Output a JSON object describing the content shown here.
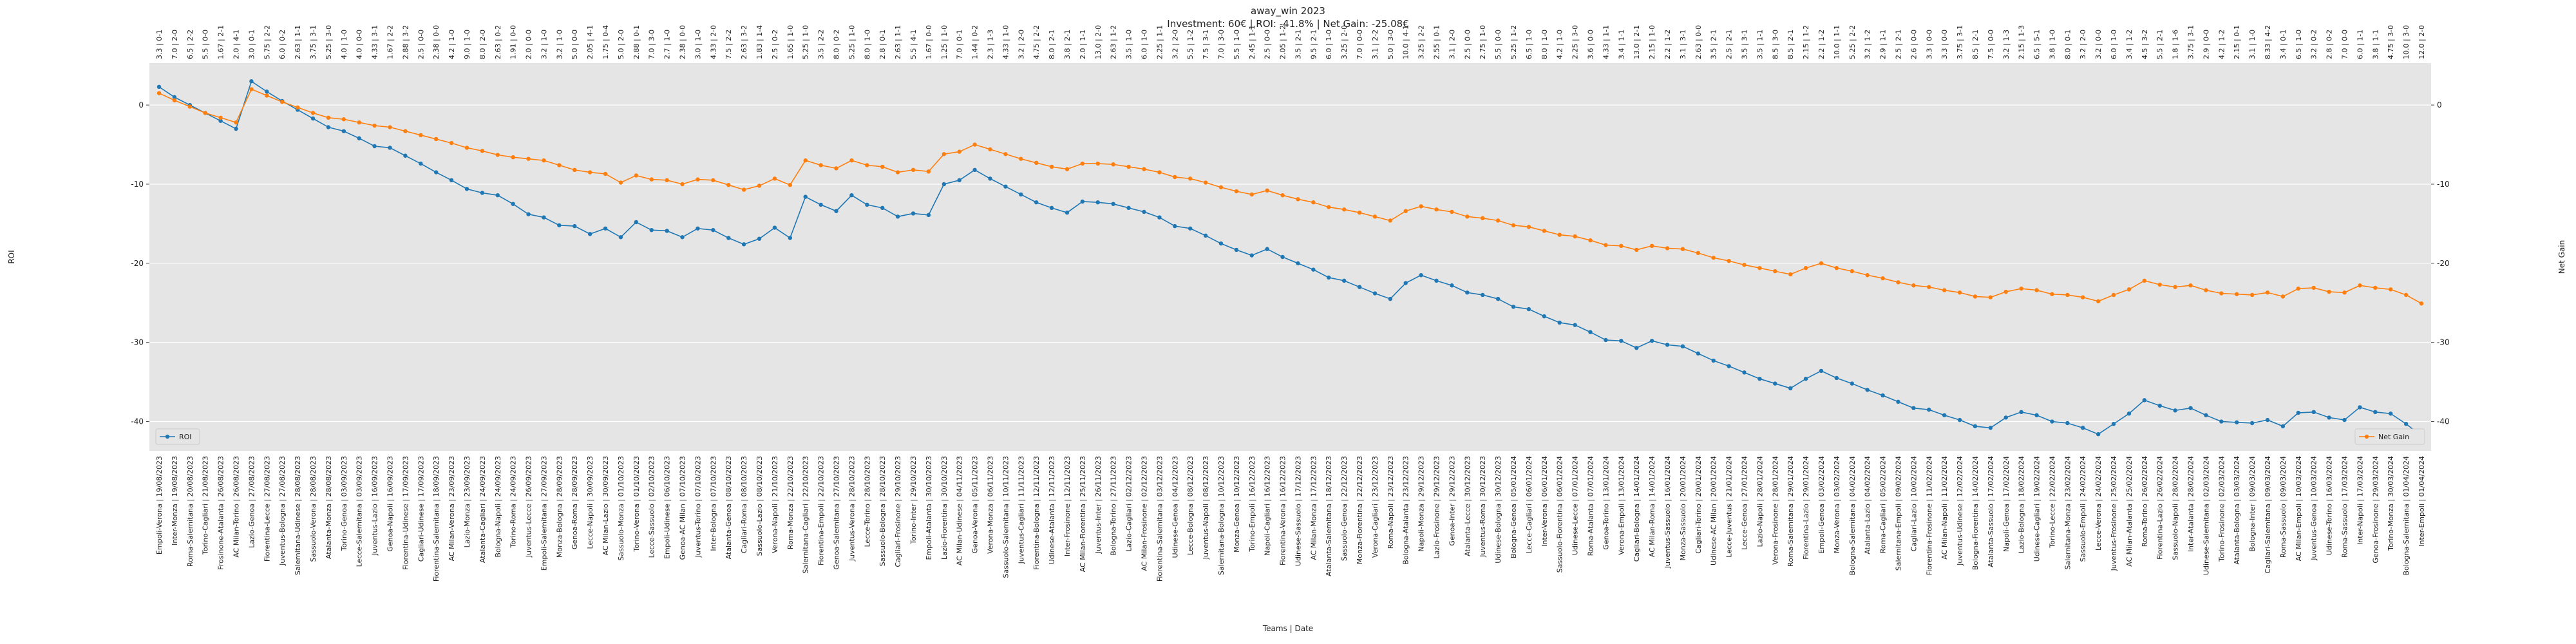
{
  "chart_data": {
    "type": "line",
    "title": "away_win 2023",
    "subtitle": "Investment: 60€ | ROI: -41.8% | Net Gain: -25.08€",
    "xlabel": "Teams | Date",
    "ylabel": "ROI",
    "y2label": "Net Gain",
    "grid": true,
    "ylim": [
      -43.7,
      5.3
    ],
    "yticks": [
      -40,
      -30,
      -20,
      -10,
      0
    ],
    "y2lim": [
      -43.7,
      5.3
    ],
    "y2ticks": [
      -40,
      -30,
      -20,
      -10,
      0
    ],
    "categories": [
      "Empoli-Verona | 19/08/2023",
      "Inter-Monza | 19/08/2023",
      "Roma-Salernitana | 20/08/2023",
      "Torino-Cagliari | 21/08/2023",
      "Frosinone-Atalanta | 26/08/2023",
      "AC Milan-Torino | 26/08/2023",
      "Lazio-Genoa | 27/08/2023",
      "Fiorentina-Lecce | 27/08/2023",
      "Juventus-Bologna | 27/08/2023",
      "Salernitana-Udinese | 28/08/2023",
      "Sassuolo-Verona | 28/08/2023",
      "Atalanta-Monza | 28/08/2023",
      "Torino-Genoa | 03/09/2023",
      "Lecce-Salernitana | 03/09/2023",
      "Juventus-Lazio | 16/09/2023",
      "Genoa-Napoli | 16/09/2023",
      "Fiorentina-Udinese | 17/09/2023",
      "Cagliari-Udinese | 17/09/2023",
      "Fiorentina-Salernitana | 18/09/2023",
      "AC Milan-Verona | 23/09/2023",
      "Lazio-Monza | 23/09/2023",
      "Atalanta-Cagliari | 24/09/2023",
      "Bologna-Napoli | 24/09/2023",
      "Torino-Roma | 24/09/2023",
      "Juventus-Lecce | 26/09/2023",
      "Empoli-Salernitana | 27/09/2023",
      "Monza-Bologna | 28/09/2023",
      "Genoa-Roma | 28/09/2023",
      "Lecce-Napoli | 30/09/2023",
      "AC Milan-Lazio | 30/09/2023",
      "Sassuolo-Monza | 01/10/2023",
      "Torino-Verona | 01/10/2023",
      "Lecce-Sassuolo | 02/10/2023",
      "Empoli-Udinese | 06/10/2023",
      "Genoa-AC Milan | 07/10/2023",
      "Juventus-Torino | 07/10/2023",
      "Inter-Bologna | 07/10/2023",
      "Atalanta-Genoa | 08/10/2023",
      "Cagliari-Roma | 08/10/2023",
      "Sassuolo-Lazio | 08/10/2023",
      "Verona-Napoli | 21/10/2023",
      "Roma-Monza | 22/10/2023",
      "Salernitana-Cagliari | 22/10/2023",
      "Fiorentina-Empoli | 22/10/2023",
      "Genoa-Salernitana | 27/10/2023",
      "Juventus-Verona | 28/10/2023",
      "Lecce-Torino | 28/10/2023",
      "Sassuolo-Bologna | 28/10/2023",
      "Cagliari-Frosinone | 29/10/2023",
      "Torino-Inter | 29/10/2023",
      "Empoli-Atalanta | 30/10/2023",
      "Lazio-Fiorentina | 30/10/2023",
      "AC Milan-Udinese | 04/11/2023",
      "Genoa-Verona | 05/11/2023",
      "Verona-Monza | 06/11/2023",
      "Sassuolo-Salernitana | 10/11/2023",
      "Juventus-Cagliari | 11/11/2023",
      "Fiorentina-Bologna | 12/11/2023",
      "Udinese-Atalanta | 12/11/2023",
      "Inter-Frosinone | 12/11/2023",
      "AC Milan-Fiorentina | 25/11/2023",
      "Juventus-Inter | 26/11/2023",
      "Bologna-Torino | 27/11/2023",
      "Lazio-Cagliari | 02/12/2023",
      "AC Milan-Frosinone | 02/12/2023",
      "Fiorentina-Salernitana | 03/12/2023",
      "Udinese-Genoa | 04/12/2023",
      "Lecce-Bologna | 08/12/2023",
      "Juventus-Napoli | 08/12/2023",
      "Salernitana-Bologna | 10/12/2023",
      "Monza-Genoa | 10/12/2023",
      "Torino-Empoli | 16/12/2023",
      "Napoli-Cagliari | 16/12/2023",
      "Fiorentina-Verona | 16/12/2023",
      "Udinese-Sassuolo | 17/12/2023",
      "AC Milan-Monza | 17/12/2023",
      "Atalanta-Salernitana | 18/12/2023",
      "Sassuolo-Genoa | 22/12/2023",
      "Monza-Fiorentina | 22/12/2023",
      "Verona-Cagliari | 23/12/2023",
      "Roma-Napoli | 23/12/2023",
      "Bologna-Atalanta | 23/12/2023",
      "Napoli-Monza | 29/12/2023",
      "Lazio-Frosinone | 29/12/2023",
      "Genoa-Inter | 29/12/2023",
      "Atalanta-Lecce | 30/12/2023",
      "Juventus-Roma | 30/12/2023",
      "Udinese-Bologna | 30/12/2023",
      "Bologna-Genoa | 05/01/2024",
      "Lecce-Cagliari | 06/01/2024",
      "Inter-Verona | 06/01/2024",
      "Sassuolo-Fiorentina | 06/01/2024",
      "Udinese-Lecce | 07/01/2024",
      "Roma-Atalanta | 07/01/2024",
      "Genoa-Torino | 13/01/2024",
      "Verona-Empoli | 13/01/2024",
      "Cagliari-Bologna | 14/01/2024",
      "AC Milan-Roma | 14/01/2024",
      "Juventus-Sassuolo | 16/01/2024",
      "Monza-Sassuolo | 20/01/2024",
      "Cagliari-Torino | 20/01/2024",
      "Udinese-AC Milan | 20/01/2024",
      "Lecce-Juventus | 21/01/2024",
      "Lecce-Genoa | 27/01/2024",
      "Lazio-Napoli | 28/01/2024",
      "Verona-Frosinone | 28/01/2024",
      "Roma-Salernitana | 29/01/2024",
      "Fiorentina-Lazio | 29/01/2024",
      "Empoli-Genoa | 03/02/2024",
      "Monza-Verona | 03/02/2024",
      "Bologna-Salernitana | 04/02/2024",
      "Atalanta-Lazio | 04/02/2024",
      "Roma-Cagliari | 05/02/2024",
      "Salernitana-Empoli | 09/02/2024",
      "Cagliari-Lazio | 10/02/2024",
      "Fiorentina-Frosinone | 11/02/2024",
      "AC Milan-Napoli | 11/02/2024",
      "Juventus-Udinese | 12/02/2024",
      "Bologna-Fiorentina | 14/02/2024",
      "Atalanta-Sassuolo | 17/02/2024",
      "Napoli-Genoa | 17/02/2024",
      "Lazio-Bologna | 18/02/2024",
      "Udinese-Cagliari | 19/02/2024",
      "Torino-Lecce | 22/02/2024",
      "Salernitana-Monza | 23/02/2024",
      "Sassuolo-Empoli | 24/02/2024",
      "Lecce-Verona | 24/02/2024",
      "Juventus-Frosinone | 25/02/2024",
      "AC Milan-Atalanta | 25/02/2024",
      "Roma-Torino | 26/02/2024",
      "Fiorentina-Lazio | 26/02/2024",
      "Sassuolo-Napoli | 28/02/2024",
      "Inter-Atalanta | 28/02/2024",
      "Udinese-Salernitana | 02/03/2024",
      "Torino-Frosinone | 02/03/2024",
      "Atalanta-Bologna | 03/03/2024",
      "Bologna-Inter | 09/03/2024",
      "Cagliari-Salernitana | 09/03/2024",
      "Roma-Sassuolo | 09/03/2024",
      "AC Milan-Empoli | 10/03/2024",
      "Juventus-Genoa | 10/03/2024",
      "Udinese-Torino | 16/03/2024",
      "Roma-Sassuolo | 17/03/2024",
      "Inter-Napoli | 17/03/2024",
      "Genoa-Frosinone | 29/03/2024",
      "Torino-Monza | 30/03/2024",
      "Bologna-Salernitana | 01/04/2024",
      "Inter-Empoli | 01/04/2024"
    ],
    "top_labels": [
      "3.3 | 0-1",
      "7.0 | 2-0",
      "6.5 | 2-2",
      "5.5 | 0-0",
      "1.67 | 2-1",
      "2.0 | 4-1",
      "3.0 | 0-1",
      "5.75 | 2-2",
      "6.0 | 0-2",
      "2.63 | 1-1",
      "3.75 | 3-1",
      "5.25 | 3-0",
      "4.0 | 1-0",
      "4.0 | 0-0",
      "4.33 | 3-1",
      "1.67 | 2-2",
      "2.88 | 3-2",
      "2.5 | 0-0",
      "2.38 | 0-0",
      "4.2 | 1-0",
      "9.0 | 1-0",
      "8.0 | 2-0",
      "2.63 | 0-2",
      "1.91 | 0-0",
      "2.0 | 0-0",
      "3.2 | 1-0",
      "3.2 | 1-0",
      "5.0 | 0-0",
      "2.05 | 4-1",
      "1.75 | 0-4",
      "5.0 | 2-0",
      "2.88 | 0-1",
      "7.0 | 3-0",
      "2.7 | 1-0",
      "2.38 | 0-0",
      "3.0 | 1-0",
      "4.33 | 2-0",
      "7.5 | 2-2",
      "2.63 | 3-2",
      "1.83 | 1-4",
      "2.5 | 0-2",
      "1.65 | 1-0",
      "5.25 | 1-0",
      "3.5 | 2-2",
      "8.0 | 0-2",
      "5.25 | 1-0",
      "8.0 | 1-0",
      "2.8 | 0-1",
      "2.63 | 1-1",
      "5.5 | 4-1",
      "1.67 | 0-0",
      "1.25 | 1-0",
      "7.0 | 0-1",
      "1.44 | 0-2",
      "2.3 | 1-3",
      "4.33 | 1-0",
      "3.2 | 2-0",
      "4.75 | 2-2",
      "8.0 | 2-1",
      "3.8 | 2-1",
      "2.0 | 1-1",
      "13.0 | 2-0",
      "2.63 | 1-2",
      "3.5 | 1-0",
      "6.0 | 1-0",
      "2.25 | 1-1",
      "3.2 | 2-0",
      "5.5 | 1-2",
      "7.5 | 3-1",
      "7.0 | 3-0",
      "5.5 | 1-0",
      "2.45 | 1-1",
      "2.5 | 0-0",
      "2.05 | 1-2",
      "3.5 | 2-1",
      "9.5 | 2-1",
      "6.0 | 1-0",
      "3.25 | 2-0",
      "7.0 | 0-0",
      "3.1 | 2-2",
      "5.0 | 3-0",
      "10.0 | 4-1",
      "3.25 | 2-2",
      "2.55 | 0-1",
      "3.1 | 2-0",
      "2.5 | 0-0",
      "2.75 | 1-0",
      "5.5 | 0-0",
      "5.25 | 1-2",
      "6.5 | 1-0",
      "8.0 | 1-0",
      "4.2 | 1-0",
      "2.25 | 3-0",
      "3.6 | 0-0",
      "4.33 | 1-1",
      "3.4 | 1-1",
      "13.0 | 2-1",
      "2.15 | 1-0",
      "2.2 | 1-2",
      "3.1 | 3-1",
      "2.63 | 0-0",
      "3.5 | 2-1",
      "2.5 | 2-1",
      "3.5 | 3-1",
      "3.5 | 1-1",
      "8.5 | 3-0",
      "8.5 | 2-1",
      "2.15 | 1-2",
      "2.2 | 1-2",
      "10.0 | 1-1",
      "5.25 | 2-2",
      "3.2 | 1-2",
      "2.9 | 1-1",
      "2.5 | 2-1",
      "2.6 | 0-0",
      "3.3 | 0-0",
      "3.3 | 0-0",
      "3.75 | 3-1",
      "8.5 | 2-1",
      "7.5 | 0-0",
      "3.2 | 1-3",
      "2.15 | 1-3",
      "6.5 | 5-1",
      "3.8 | 1-0",
      "8.0 | 0-1",
      "3.2 | 2-0",
      "3.2 | 0-0",
      "6.0 | 1-0",
      "3.4 | 1-2",
      "4.5 | 3-2",
      "5.5 | 2-1",
      "1.8 | 1-6",
      "3.75 | 3-1",
      "2.9 | 0-0",
      "4.2 | 1-2",
      "2.15 | 0-1",
      "3.1 | 1-0",
      "8.33 | 4-2",
      "3.4 | 0-1",
      "6.5 | 1-0",
      "3.2 | 0-2",
      "2.8 | 0-2",
      "7.0 | 0-0",
      "6.0 | 1-1",
      "3.8 | 1-1",
      "4.75 | 3-0",
      "10.0 | 3-0",
      "12.0 | 2-0"
    ],
    "series": [
      {
        "name": "ROI",
        "color": "#1f77b4",
        "axis": "y",
        "legend": "lower left",
        "values": [
          2.3,
          1.0,
          0.0,
          -1.0,
          -2.0,
          -3.0,
          3.0,
          1.7,
          0.5,
          -0.6,
          -1.7,
          -2.8,
          -3.3,
          -4.2,
          -5.2,
          -5.4,
          -6.4,
          -7.4,
          -8.5,
          -9.5,
          -10.6,
          -11.1,
          -11.4,
          -12.5,
          -13.8,
          -14.2,
          -15.2,
          -15.3,
          -16.3,
          -15.6,
          -16.7,
          -14.8,
          -15.8,
          -15.9,
          -16.7,
          -15.6,
          -15.8,
          -16.8,
          -17.6,
          -16.9,
          -15.5,
          -16.8,
          -11.6,
          -12.6,
          -13.4,
          -11.4,
          -12.6,
          -13.0,
          -14.1,
          -13.7,
          -13.9,
          -10.0,
          -9.5,
          -8.2,
          -9.3,
          -10.3,
          -11.3,
          -12.3,
          -13.0,
          -13.6,
          -12.2,
          -12.3,
          -12.5,
          -13.0,
          -13.5,
          -14.2,
          -15.3,
          -15.6,
          -16.5,
          -17.5,
          -18.3,
          -19.0,
          -18.2,
          -19.2,
          -20.0,
          -20.8,
          -21.8,
          -22.2,
          -23.0,
          -23.8,
          -24.5,
          -22.5,
          -21.5,
          -22.2,
          -22.8,
          -23.7,
          -24.0,
          -24.5,
          -25.5,
          -25.8,
          -26.7,
          -27.5,
          -27.8,
          -28.7,
          -29.7,
          -29.8,
          -30.7,
          -29.8,
          -30.3,
          -30.5,
          -31.4,
          -32.3,
          -33.0,
          -33.8,
          -34.6,
          -35.2,
          -35.8,
          -34.6,
          -33.6,
          -34.5,
          -35.2,
          -36.0,
          -36.7,
          -37.5,
          -38.3,
          -38.5,
          -39.2,
          -39.8,
          -40.6,
          -40.8,
          -39.5,
          -38.8,
          -39.2,
          -40.0,
          -40.2,
          -40.8,
          -41.6,
          -40.3,
          -39.0,
          -37.3,
          -38.0,
          -38.6,
          -38.3,
          -39.2,
          -40.0,
          -40.1,
          -40.2,
          -39.8,
          -40.6,
          -38.9,
          -38.8,
          -39.5,
          -39.8,
          -38.2,
          -38.8,
          -39.0,
          -40.3,
          -41.8
        ]
      },
      {
        "name": "Net Gain",
        "color": "#ff7f0e",
        "axis": "y2",
        "legend": "lower right",
        "values": [
          1.5,
          0.6,
          -0.2,
          -1.0,
          -1.6,
          -2.2,
          2.0,
          1.2,
          0.4,
          -0.3,
          -1.0,
          -1.6,
          -1.8,
          -2.2,
          -2.6,
          -2.8,
          -3.3,
          -3.8,
          -4.3,
          -4.8,
          -5.4,
          -5.8,
          -6.3,
          -6.6,
          -6.8,
          -7.0,
          -7.6,
          -8.2,
          -8.5,
          -8.7,
          -9.8,
          -8.9,
          -9.4,
          -9.5,
          -10.0,
          -9.4,
          -9.5,
          -10.1,
          -10.7,
          -10.2,
          -9.3,
          -10.1,
          -7.0,
          -7.6,
          -8.0,
          -7.0,
          -7.6,
          -7.8,
          -8.5,
          -8.2,
          -8.4,
          -6.2,
          -5.9,
          -5.0,
          -5.6,
          -6.2,
          -6.8,
          -7.3,
          -7.8,
          -8.1,
          -7.4,
          -7.4,
          -7.5,
          -7.8,
          -8.1,
          -8.5,
          -9.1,
          -9.3,
          -9.8,
          -10.4,
          -10.9,
          -11.3,
          -10.8,
          -11.4,
          -11.9,
          -12.3,
          -12.9,
          -13.2,
          -13.6,
          -14.1,
          -14.6,
          -13.4,
          -12.8,
          -13.2,
          -13.5,
          -14.1,
          -14.3,
          -14.6,
          -15.2,
          -15.4,
          -15.9,
          -16.4,
          -16.6,
          -17.1,
          -17.7,
          -17.8,
          -18.3,
          -17.8,
          -18.1,
          -18.2,
          -18.7,
          -19.3,
          -19.7,
          -20.2,
          -20.6,
          -21.0,
          -21.4,
          -20.6,
          -20.0,
          -20.6,
          -21.0,
          -21.5,
          -21.9,
          -22.4,
          -22.8,
          -23.0,
          -23.4,
          -23.7,
          -24.2,
          -24.3,
          -23.6,
          -23.2,
          -23.4,
          -23.9,
          -24.0,
          -24.3,
          -24.8,
          -24.0,
          -23.3,
          -22.2,
          -22.7,
          -23.0,
          -22.8,
          -23.4,
          -23.8,
          -23.9,
          -24.0,
          -23.7,
          -24.2,
          -23.2,
          -23.1,
          -23.6,
          -23.7,
          -22.8,
          -23.1,
          -23.3,
          -24.0,
          -25.08
        ]
      }
    ]
  }
}
